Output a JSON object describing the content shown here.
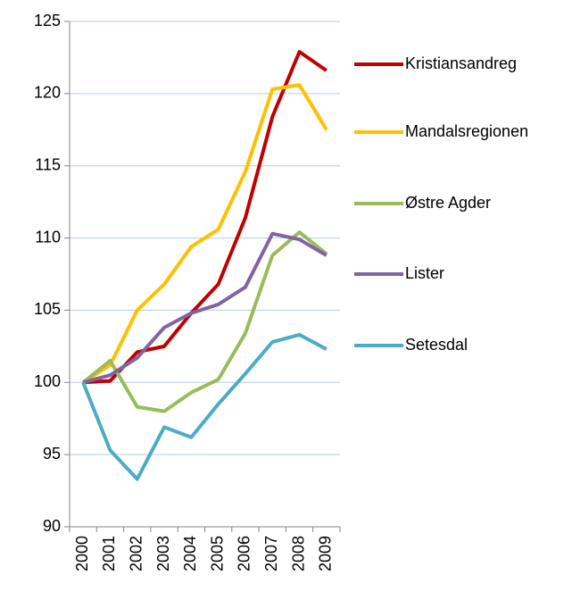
{
  "chart_data": {
    "type": "line",
    "categories": [
      "2000",
      "2001",
      "2002",
      "2003",
      "2004",
      "2005",
      "2006",
      "2007",
      "2008",
      "2009"
    ],
    "series": [
      {
        "name": "Kristiansandreg",
        "color": "#c00000",
        "values": [
          100,
          100.1,
          102.1,
          102.5,
          104.8,
          106.8,
          111.4,
          118.4,
          122.9,
          121.6
        ]
      },
      {
        "name": "Mandalsregionen",
        "color": "#ffc000",
        "values": [
          100,
          101.2,
          105.0,
          106.8,
          109.4,
          110.6,
          114.6,
          120.3,
          120.6,
          117.5
        ]
      },
      {
        "name": "Østre Agder",
        "color": "#9bbb59",
        "values": [
          100,
          101.5,
          98.3,
          98.0,
          99.3,
          100.2,
          103.4,
          108.8,
          110.4,
          108.9
        ]
      },
      {
        "name": "Lister",
        "color": "#8064a2",
        "values": [
          100,
          100.5,
          101.7,
          103.8,
          104.8,
          105.4,
          106.6,
          110.3,
          109.9,
          108.8
        ]
      },
      {
        "name": "Setesdal",
        "color": "#4bacc6",
        "values": [
          100,
          95.3,
          93.3,
          96.9,
          96.2,
          98.5,
          100.6,
          102.8,
          103.3,
          102.3
        ]
      }
    ],
    "ylim": [
      90,
      125
    ],
    "yticks": [
      90,
      95,
      100,
      105,
      110,
      115,
      120,
      125
    ],
    "grid": true,
    "legend": "right"
  }
}
